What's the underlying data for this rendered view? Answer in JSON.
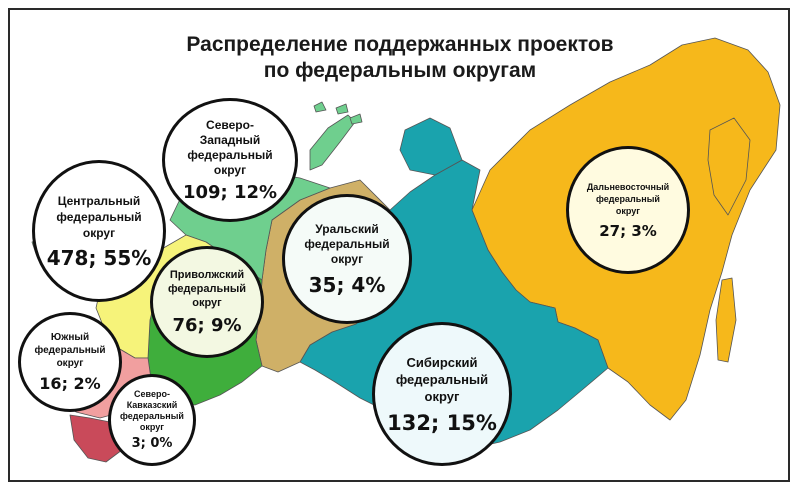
{
  "title": {
    "line1": "Распределение поддержанных проектов",
    "line2": "по федеральным округам"
  },
  "colors": {
    "central": "#f6f37a",
    "northwest": "#6fcf8e",
    "volga": "#3fae3c",
    "south": "#f19f9f",
    "north_caucasus": "#c94a5a",
    "ural": "#cfb067",
    "siberia": "#1aa3ad",
    "far_east": "#f6b81b",
    "border": "#555555"
  },
  "districts": [
    {
      "id": "central",
      "name": "Центральный\nфедеральный\nокруг",
      "value": "478; 55%"
    },
    {
      "id": "northwest",
      "name": "Северо-\nЗападный\nфедеральный\nокруг",
      "value": "109; 12%"
    },
    {
      "id": "volga",
      "name": "Приволжский\nфедеральный\nокруг",
      "value": "76; 9%"
    },
    {
      "id": "south",
      "name": "Южный\nфедеральный\nокруг",
      "value": "16; 2%"
    },
    {
      "id": "north_caucasus",
      "name": "Северо-\nКавказский\nфедеральный\nокруг",
      "value": "3; 0%"
    },
    {
      "id": "ural",
      "name": "Уральский\nфедеральный\nокруг",
      "value": "35; 4%"
    },
    {
      "id": "siberia",
      "name": "Сибирский\nфедеральный\nокруг",
      "value": "132; 15%"
    },
    {
      "id": "far_east",
      "name": "Дальневосточный\nфедеральный\nокруг",
      "value": "27; 3%"
    }
  ]
}
